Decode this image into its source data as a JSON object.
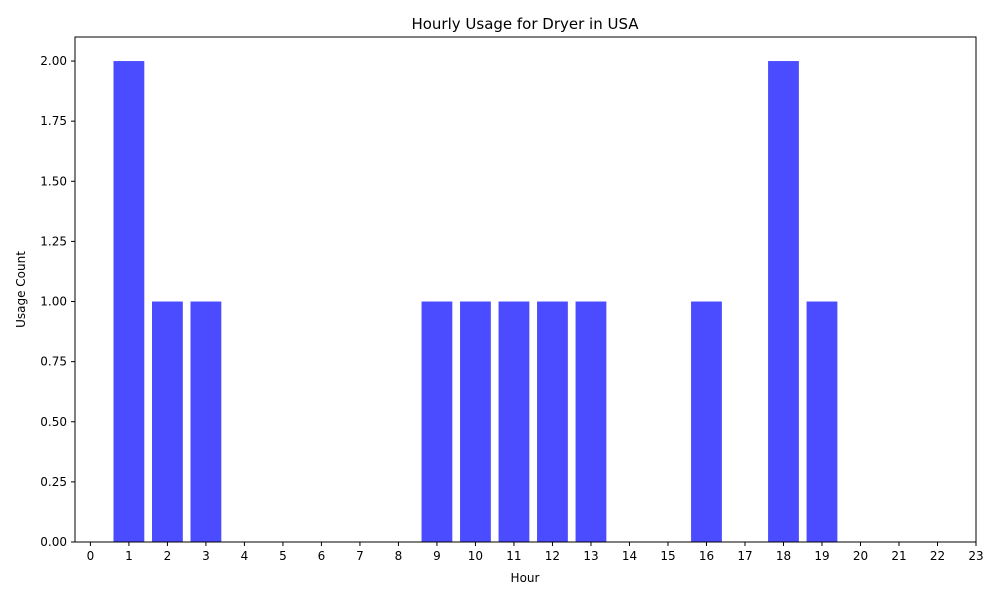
{
  "chart_data": {
    "type": "bar",
    "title": "Hourly Usage for Dryer in USA",
    "xlabel": "Hour",
    "ylabel": "Usage Count",
    "x": [
      1,
      2,
      3,
      9,
      10,
      11,
      12,
      13,
      16,
      18,
      19
    ],
    "values": [
      2,
      1,
      1,
      1,
      1,
      1,
      1,
      1,
      1,
      2,
      1
    ],
    "xlim": [
      -0.4,
      23
    ],
    "ylim": [
      0,
      2.1
    ],
    "xticks": [
      0,
      1,
      2,
      3,
      4,
      5,
      6,
      7,
      8,
      9,
      10,
      11,
      12,
      13,
      14,
      15,
      16,
      17,
      18,
      19,
      20,
      21,
      22,
      23
    ],
    "yticks": [
      "0.00",
      "0.25",
      "0.50",
      "0.75",
      "1.00",
      "1.25",
      "1.50",
      "1.75",
      "2.00"
    ],
    "bar_color": "#4b4bff",
    "grid": false,
    "legend": "none"
  }
}
